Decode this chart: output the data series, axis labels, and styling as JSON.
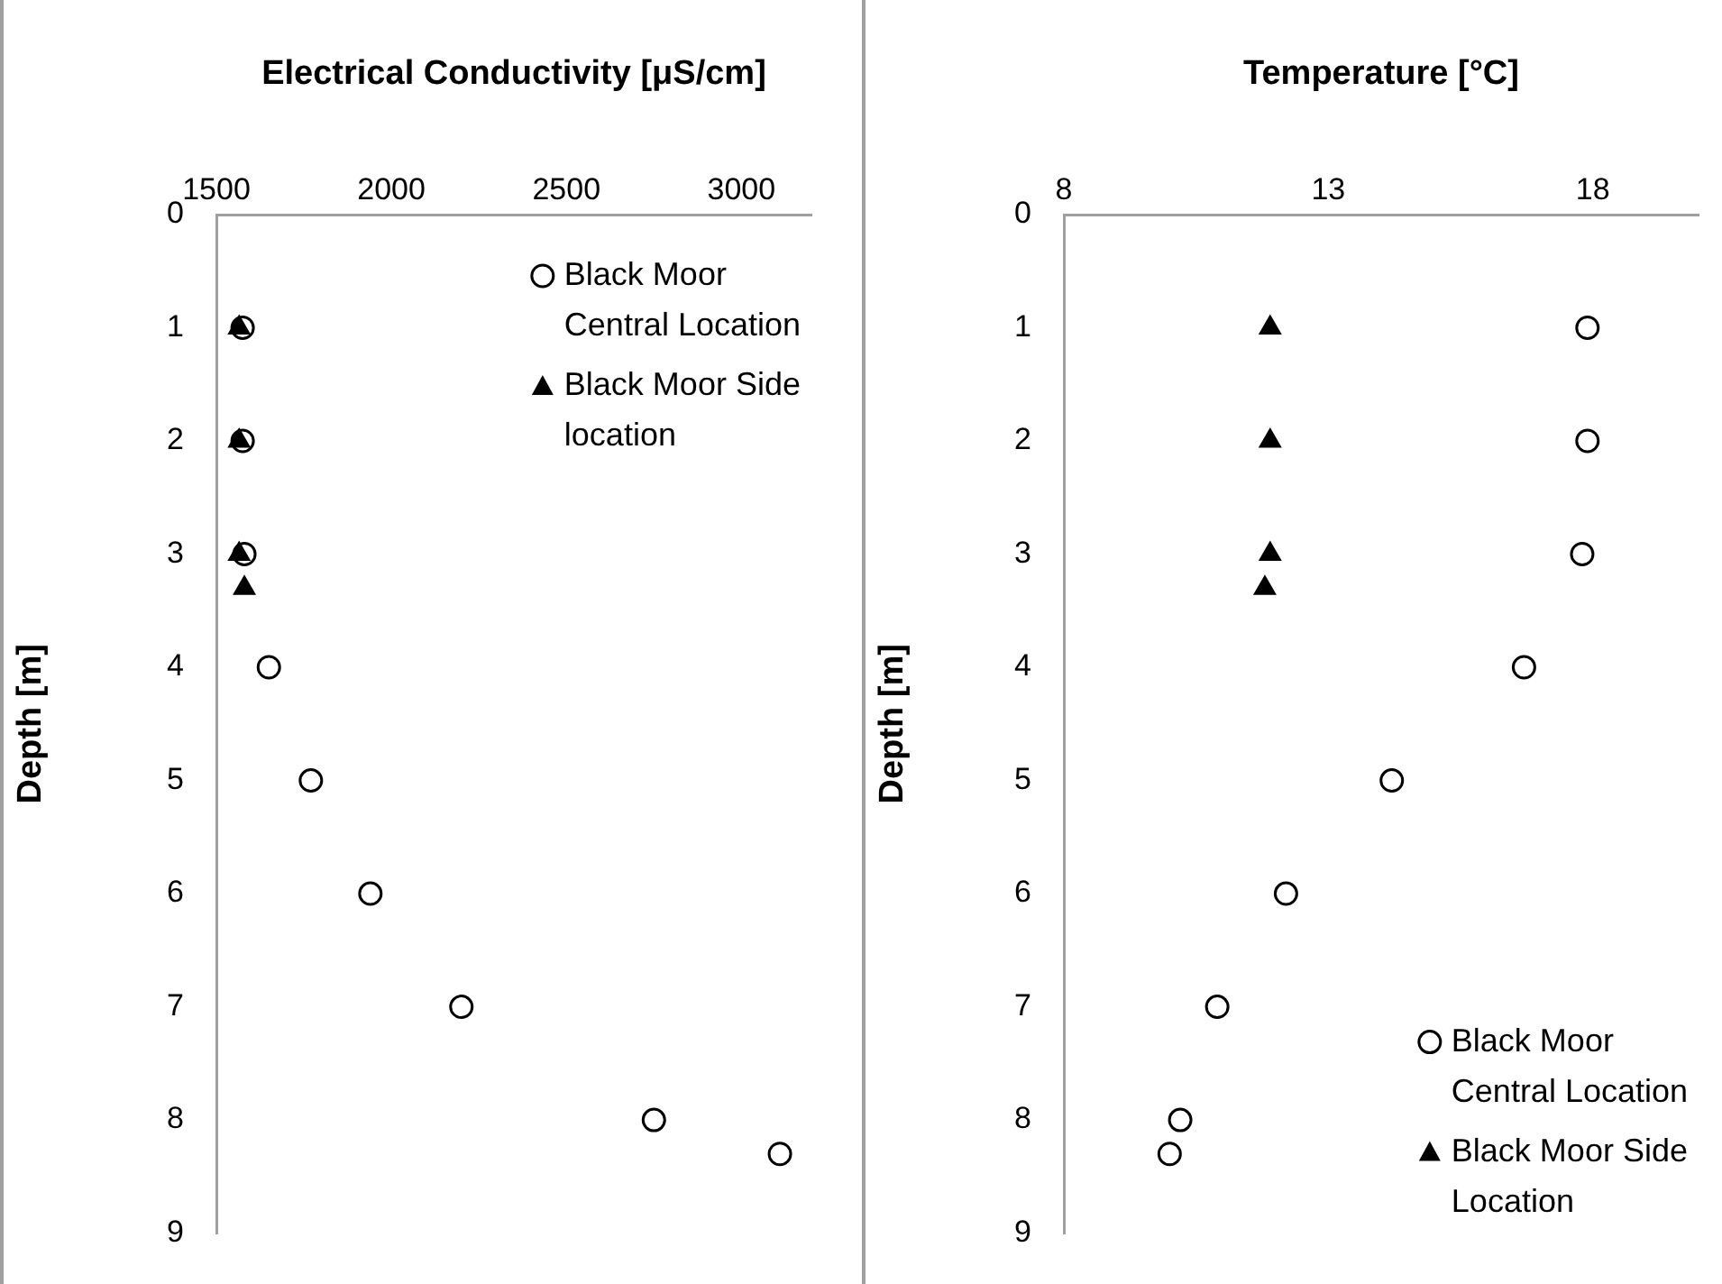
{
  "chart_data": [
    {
      "type": "scatter",
      "xlabel": "Electrical Conductivity [μS/cm]",
      "ylabel": "Depth [m]",
      "xlim": [
        1500,
        3200
      ],
      "xticks": [
        1500,
        2000,
        2500,
        3000
      ],
      "ylim": [
        9,
        0
      ],
      "yticks": [
        0,
        1,
        2,
        3,
        4,
        5,
        6,
        7,
        8,
        9
      ],
      "grid": false,
      "legend": "top right",
      "series": [
        {
          "name": "Black Moor Central Location",
          "color": "#000000",
          "marker": "circle",
          "x": [
            1575,
            1575,
            1580,
            1650,
            1770,
            1940,
            2200,
            2750,
            3110
          ],
          "values": [
            1,
            2,
            3,
            4,
            5,
            6,
            7,
            8,
            8.3
          ]
        },
        {
          "name": "Black Moor Side location",
          "color": "#000000",
          "marker": "triangle",
          "x": [
            1565,
            1565,
            1565,
            1580
          ],
          "values": [
            1,
            2,
            3,
            3.3
          ]
        }
      ]
    },
    {
      "type": "scatter",
      "xlabel": "Temperature [°C]",
      "ylabel": "Depth [m]",
      "xlim": [
        8,
        20
      ],
      "xticks": [
        8,
        13,
        18
      ],
      "ylim": [
        9,
        0
      ],
      "yticks": [
        0,
        1,
        2,
        3,
        4,
        5,
        6,
        7,
        8,
        9
      ],
      "grid": false,
      "legend": "bottom right",
      "series": [
        {
          "name": "Black Moor Central Location",
          "color": "#000000",
          "marker": "circle",
          "x": [
            17.9,
            17.9,
            17.8,
            16.7,
            14.2,
            12.2,
            10.9,
            10.2,
            10.0
          ],
          "values": [
            1,
            2,
            3,
            4,
            5,
            6,
            7,
            8,
            8.3
          ]
        },
        {
          "name": "Black Moor Side Location",
          "color": "#000000",
          "marker": "triangle",
          "x": [
            11.9,
            11.9,
            11.9,
            11.8
          ],
          "values": [
            1,
            2,
            3,
            3.3
          ]
        }
      ]
    }
  ]
}
